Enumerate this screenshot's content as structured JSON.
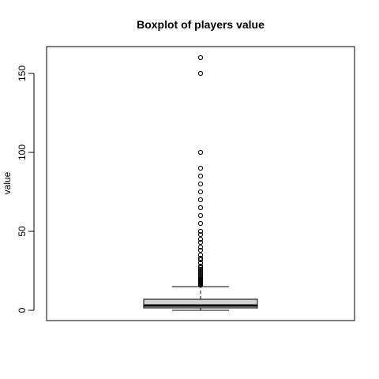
{
  "chart_data": {
    "type": "boxplot",
    "title": "Boxplot of players value",
    "xlabel": "",
    "ylabel": "value",
    "ylim": [
      -6.5,
      167
    ],
    "yticks": [
      0,
      50,
      100,
      150
    ],
    "box": {
      "min": 0,
      "q1": 1.5,
      "median": 3,
      "q3": 7,
      "whisker_high": 15,
      "fill": "#d3d3d3"
    },
    "outliers": [
      16,
      16.5,
      17,
      17.5,
      18,
      18.5,
      19,
      19.5,
      20,
      21,
      22,
      23,
      24,
      25,
      26,
      27,
      28,
      30,
      32,
      33,
      35,
      38,
      40,
      43,
      45,
      48,
      50,
      55,
      60,
      65,
      70,
      75,
      80,
      85,
      90,
      100,
      150,
      160
    ]
  }
}
